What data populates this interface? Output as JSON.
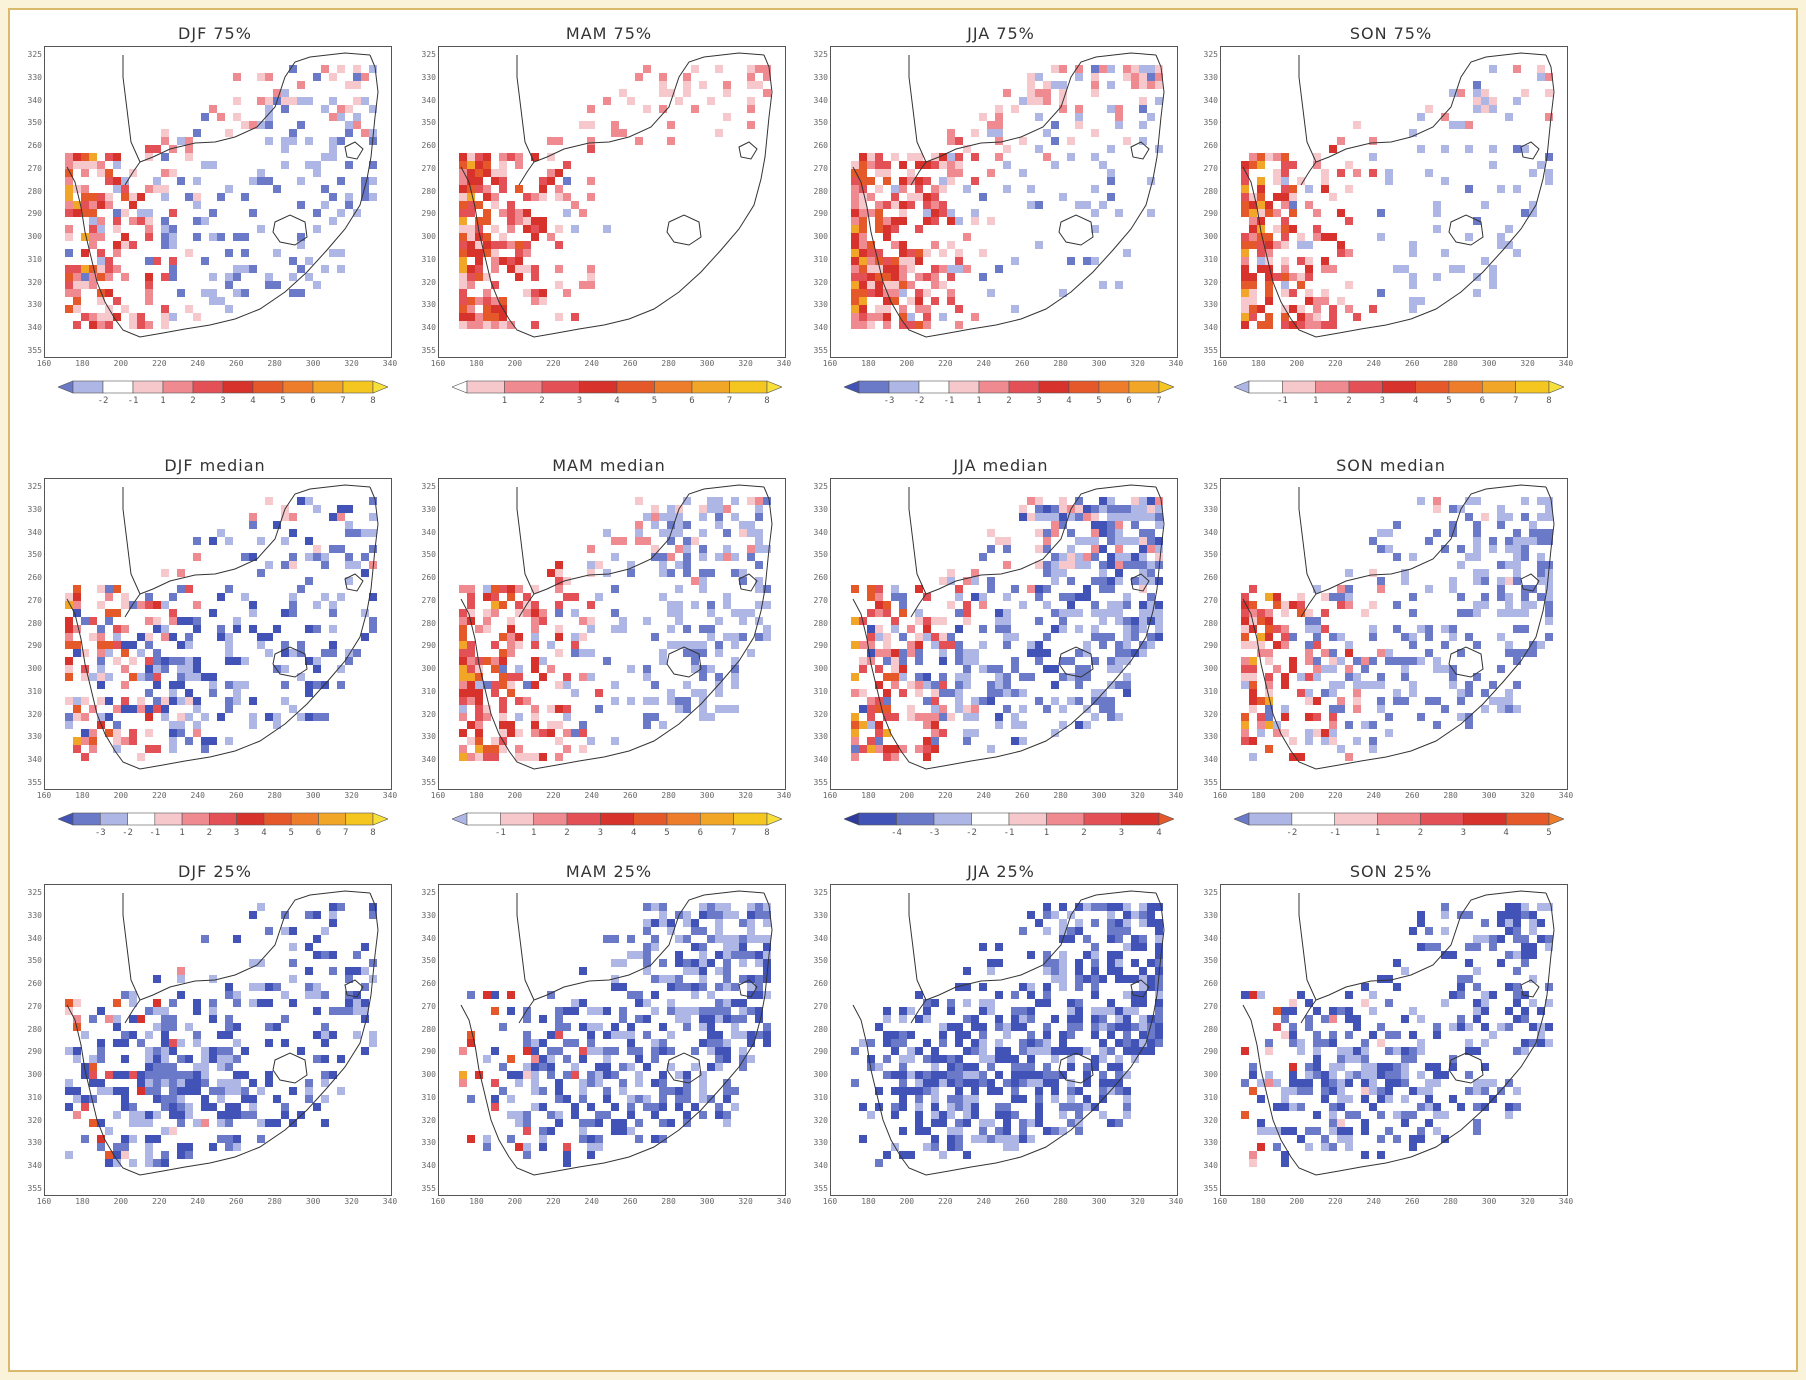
{
  "figure": {
    "background": "#fbf3d9",
    "border_color": "#d9b96a",
    "lat_ticks": [
      "325",
      "330",
      "340",
      "350",
      "260",
      "270",
      "280",
      "290",
      "300",
      "310",
      "320",
      "330",
      "340",
      "355"
    ],
    "lon_ticks": [
      "160",
      "180",
      "200",
      "220",
      "240",
      "260",
      "280",
      "300",
      "320",
      "340"
    ],
    "colors": {
      "-4": "#2b3a9c",
      "-3": "#4153b7",
      "-2": "#6b79c9",
      "-1": "#aeb6e6",
      "0": "#ffffff",
      "1": "#f6c8cc",
      "2": "#ee8a90",
      "3": "#e35056",
      "4": "#d8322c",
      "5": "#e4582a",
      "6": "#ee7d2b",
      "7": "#f2a628",
      "8": "#f4c61f",
      "9": "#f7e03b"
    }
  },
  "panels": [
    {
      "title": "DJF  75%",
      "colorbar": [
        "-2",
        "-1",
        "1",
        "2",
        "3",
        "4",
        "5",
        "6",
        "7",
        "8"
      ],
      "bins": [
        -2,
        -1,
        0,
        1,
        2,
        3,
        4,
        5,
        6,
        7,
        8,
        9
      ]
    },
    {
      "title": "MAM  75%",
      "colorbar": [
        "1",
        "2",
        "3",
        "4",
        "5",
        "6",
        "7",
        "8"
      ],
      "bins": [
        0,
        1,
        2,
        3,
        4,
        5,
        6,
        7,
        8,
        9
      ]
    },
    {
      "title": "JJA  75%",
      "colorbar": [
        "-3",
        "-2",
        "-1",
        "1",
        "2",
        "3",
        "4",
        "5",
        "6",
        "7"
      ],
      "bins": [
        -3,
        -2,
        -1,
        0,
        1,
        2,
        3,
        4,
        5,
        6,
        7,
        8
      ]
    },
    {
      "title": "SON  75%",
      "colorbar": [
        "-1",
        "1",
        "2",
        "3",
        "4",
        "5",
        "6",
        "7",
        "8"
      ],
      "bins": [
        -1,
        0,
        1,
        2,
        3,
        4,
        5,
        6,
        7,
        8,
        9
      ]
    },
    {
      "title": "DJF  median",
      "colorbar": [
        "-3",
        "-2",
        "-1",
        "1",
        "2",
        "3",
        "4",
        "5",
        "6",
        "7",
        "8"
      ],
      "bins": [
        -3,
        -2,
        -1,
        0,
        1,
        2,
        3,
        4,
        5,
        6,
        7,
        8,
        9
      ]
    },
    {
      "title": "MAM  median",
      "colorbar": [
        "-1",
        "1",
        "2",
        "3",
        "4",
        "5",
        "6",
        "7",
        "8"
      ],
      "bins": [
        -1,
        0,
        1,
        2,
        3,
        4,
        5,
        6,
        7,
        8,
        9
      ]
    },
    {
      "title": "JJA  median",
      "colorbar": [
        "-4",
        "-3",
        "-2",
        "-1",
        "1",
        "2",
        "3",
        "4"
      ],
      "bins": [
        -4,
        -3,
        -2,
        -1,
        0,
        1,
        2,
        3,
        4,
        5
      ]
    },
    {
      "title": "SON  median",
      "colorbar": [
        "-2",
        "-1",
        "1",
        "2",
        "3",
        "4",
        "5"
      ],
      "bins": [
        -2,
        -1,
        0,
        1,
        2,
        3,
        4,
        5,
        6
      ]
    },
    {
      "title": "DJF  25%",
      "colorbar": [],
      "bins": []
    },
    {
      "title": "MAM  25%",
      "colorbar": [],
      "bins": []
    },
    {
      "title": "JJA  25%",
      "colorbar": [],
      "bins": []
    },
    {
      "title": "SON  25%",
      "colorbar": [],
      "bins": []
    }
  ]
}
